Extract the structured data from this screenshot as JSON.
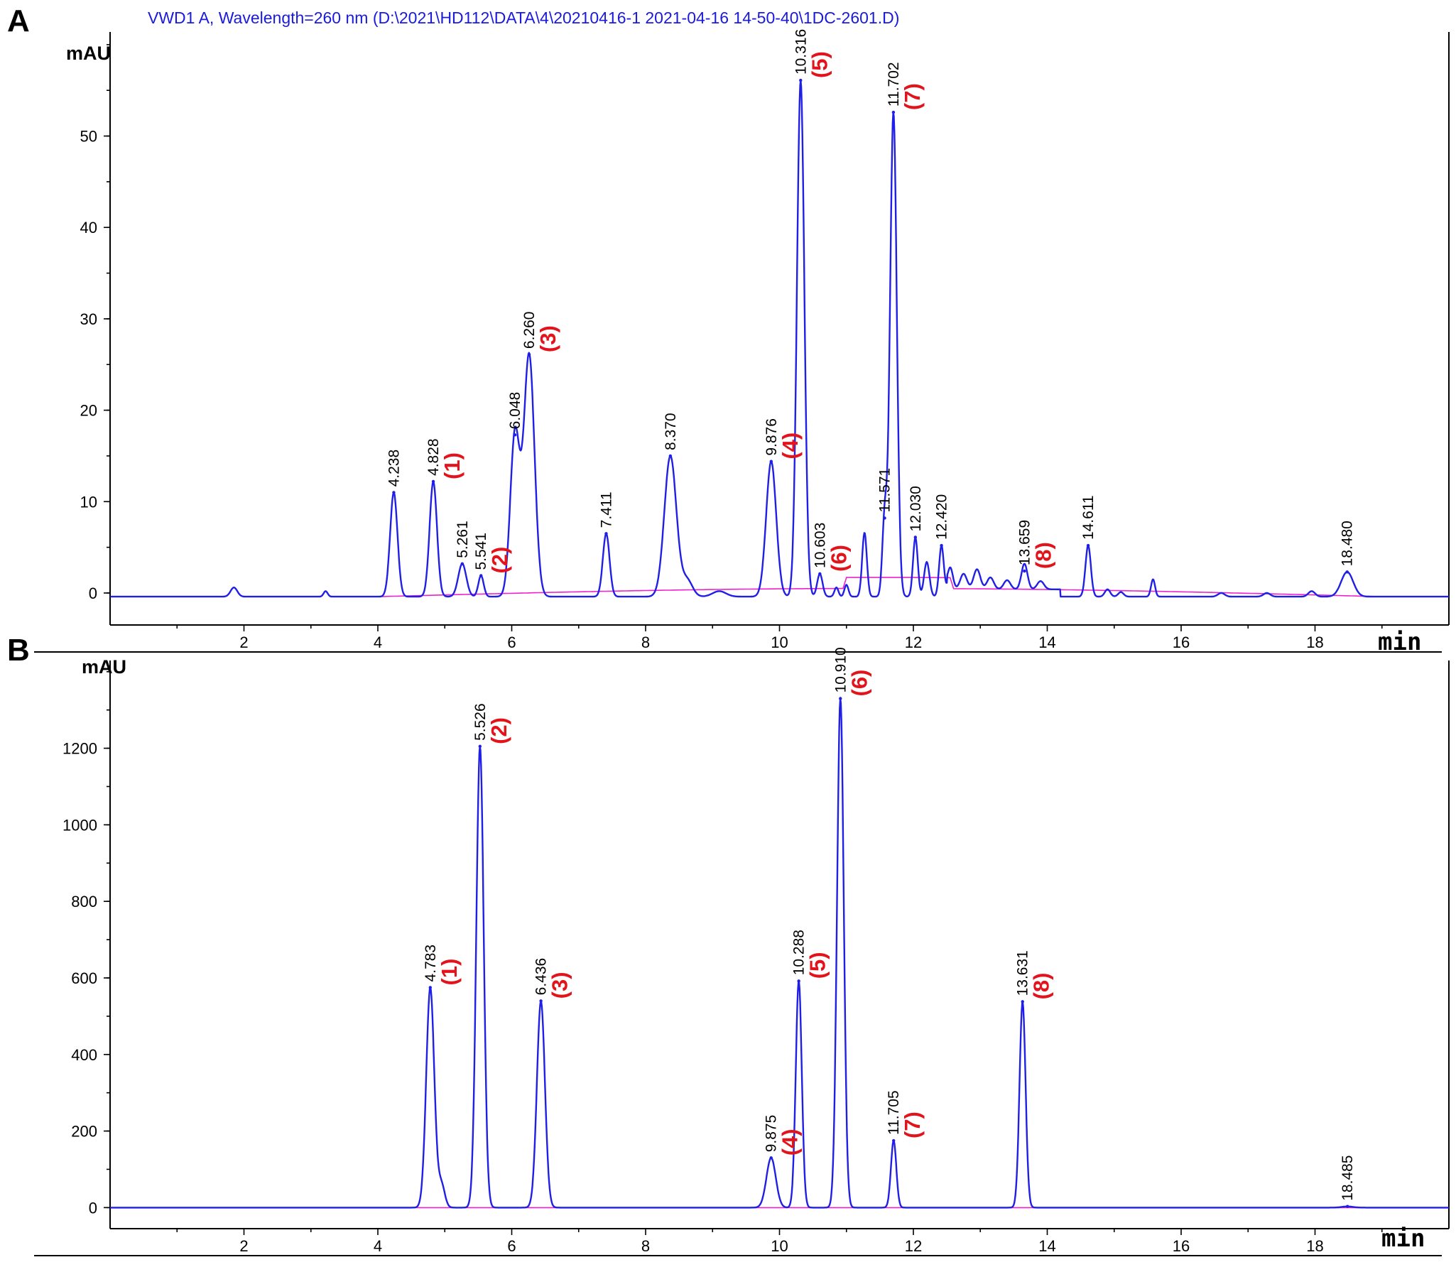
{
  "colors": {
    "trace": "#1f1fe6",
    "baseline": "#ee22cc",
    "compound_label": "#e3131b",
    "header": "#1a1adc"
  },
  "chart_data": [
    {
      "type": "line",
      "panel": "A",
      "header": "VWD1 A, Wavelength=260 nm (D:\\2021\\HD112\\DATA\\4\\20210416-1 2021-04-16 14-50-40\\1DC-2601.D)",
      "ylabel": "mAU",
      "xlabel": "min",
      "xlim": [
        0,
        20.0
      ],
      "ylim": [
        -3.5,
        61
      ],
      "x_ticks": [
        2,
        4,
        6,
        8,
        10,
        12,
        14,
        16,
        18
      ],
      "y_ticks": [
        0,
        10,
        20,
        30,
        40,
        50
      ],
      "base_level": -0.4,
      "peaks": [
        {
          "t": 1.85,
          "h": 1.0,
          "w": 0.05
        },
        {
          "t": 3.22,
          "h": 0.6,
          "w": 0.03
        },
        {
          "t": 4.238,
          "h": 11.4,
          "w": 0.055,
          "label": "4.238"
        },
        {
          "t": 4.828,
          "h": 12.6,
          "w": 0.055,
          "label": "4.828",
          "compound": "(1)"
        },
        {
          "t": 5.261,
          "h": 3.6,
          "w": 0.06,
          "label": "5.261"
        },
        {
          "t": 5.541,
          "h": 2.3,
          "w": 0.04,
          "label": "5.541",
          "compound": "(2)"
        },
        {
          "t": 6.048,
          "h": 17.7,
          "w": 0.07,
          "label": "6.048"
        },
        {
          "t": 6.26,
          "h": 26.5,
          "w": 0.08,
          "label": "6.260",
          "compound": "(3)"
        },
        {
          "t": 7.411,
          "h": 6.9,
          "w": 0.05,
          "label": "7.411"
        },
        {
          "t": 8.37,
          "h": 15.4,
          "w": 0.09,
          "label": "8.370"
        },
        {
          "t": 8.62,
          "h": 1.8,
          "w": 0.08
        },
        {
          "t": 9.1,
          "h": 0.6,
          "w": 0.1
        },
        {
          "t": 9.876,
          "h": 14.8,
          "w": 0.075,
          "label": "9.876",
          "compound": "(4)"
        },
        {
          "t": 10.316,
          "h": 56.5,
          "w": 0.055,
          "label": "10.316",
          "compound": "(5)"
        },
        {
          "t": 10.603,
          "h": 2.5,
          "w": 0.04,
          "label": "10.603",
          "compound": "(6)"
        },
        {
          "t": 10.85,
          "h": 1.0,
          "w": 0.03
        },
        {
          "t": 11.0,
          "h": 1.3,
          "w": 0.03
        },
        {
          "t": 11.27,
          "h": 7.0,
          "w": 0.035
        },
        {
          "t": 11.571,
          "h": 8.6,
          "w": 0.035,
          "label": "11.571"
        },
        {
          "t": 11.702,
          "h": 53.0,
          "w": 0.05,
          "label": "11.702",
          "compound": "(7)"
        },
        {
          "t": 12.03,
          "h": 6.5,
          "w": 0.035,
          "label": "12.030"
        },
        {
          "t": 12.2,
          "h": 3.8,
          "w": 0.04
        },
        {
          "t": 12.42,
          "h": 5.6,
          "w": 0.035,
          "label": "12.420"
        },
        {
          "t": 12.55,
          "h": 2.4,
          "w": 0.04
        },
        {
          "t": 12.75,
          "h": 1.7,
          "w": 0.05
        },
        {
          "t": 12.95,
          "h": 2.2,
          "w": 0.05
        },
        {
          "t": 13.15,
          "h": 1.3,
          "w": 0.05
        },
        {
          "t": 13.4,
          "h": 1.0,
          "w": 0.05
        },
        {
          "t": 13.659,
          "h": 2.8,
          "w": 0.045,
          "label": "13.659",
          "compound": "(8)"
        },
        {
          "t": 13.9,
          "h": 0.9,
          "w": 0.05
        },
        {
          "t": 14.611,
          "h": 5.6,
          "w": 0.04,
          "label": "14.611"
        },
        {
          "t": 14.9,
          "h": 0.8,
          "w": 0.04
        },
        {
          "t": 15.1,
          "h": 0.5,
          "w": 0.04
        },
        {
          "t": 15.58,
          "h": 1.9,
          "w": 0.03
        },
        {
          "t": 16.6,
          "h": 0.4,
          "w": 0.05
        },
        {
          "t": 17.28,
          "h": 0.4,
          "w": 0.05
        },
        {
          "t": 17.95,
          "h": 0.6,
          "w": 0.05
        },
        {
          "t": 18.48,
          "h": 2.7,
          "w": 0.09,
          "label": "18.480"
        }
      ]
    },
    {
      "type": "line",
      "panel": "B",
      "ylabel": "mAU",
      "xlabel": "min",
      "xlim": [
        0,
        20.0
      ],
      "ylim": [
        -55,
        1420
      ],
      "x_ticks": [
        2,
        4,
        6,
        8,
        10,
        12,
        14,
        16,
        18
      ],
      "y_ticks": [
        0,
        200,
        400,
        600,
        800,
        1000,
        1200
      ],
      "base_level": 0,
      "peaks": [
        {
          "t": 4.783,
          "h": 575,
          "w": 0.06,
          "label": "4.783",
          "compound": "(1)"
        },
        {
          "t": 4.95,
          "h": 60,
          "w": 0.05
        },
        {
          "t": 5.526,
          "h": 1205,
          "w": 0.055,
          "label": "5.526",
          "compound": "(2)"
        },
        {
          "t": 6.436,
          "h": 540,
          "w": 0.06,
          "label": "6.436",
          "compound": "(3)"
        },
        {
          "t": 9.875,
          "h": 130,
          "w": 0.07,
          "label": "9.875",
          "compound": "(4)"
        },
        {
          "t": 10.288,
          "h": 592,
          "w": 0.045,
          "label": "10.288",
          "compound": "(5)"
        },
        {
          "t": 10.91,
          "h": 1330,
          "w": 0.05,
          "label": "10.910",
          "compound": "(6)"
        },
        {
          "t": 11.705,
          "h": 175,
          "w": 0.04,
          "label": "11.705",
          "compound": "(7)"
        },
        {
          "t": 13.631,
          "h": 538,
          "w": 0.045,
          "label": "13.631",
          "compound": "(8)"
        },
        {
          "t": 18.485,
          "h": 3,
          "w": 0.08,
          "label": "18.485"
        }
      ]
    }
  ]
}
